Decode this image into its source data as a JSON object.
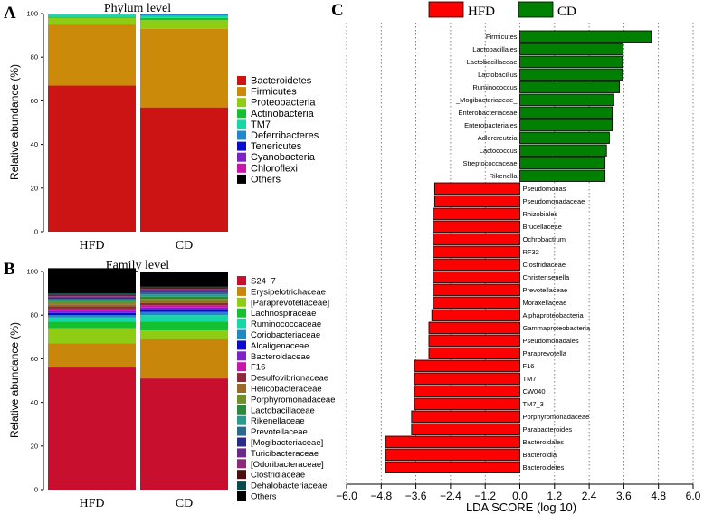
{
  "panel_labels": {
    "a": "A",
    "b": "B",
    "c": "C"
  },
  "chart_data": [
    {
      "type": "bar",
      "subtype": "stacked-100",
      "title": "Phylum level",
      "xlabel": "",
      "ylabel": "Relative abundance (%)",
      "ylim": [
        0,
        100
      ],
      "yticks": [
        0,
        20,
        40,
        60,
        80,
        100
      ],
      "categories": [
        "HFD",
        "CD"
      ],
      "series": [
        {
          "name": "Bacteroidetes",
          "color": "#cc1414",
          "values": [
            67,
            57
          ]
        },
        {
          "name": "Firmicutes",
          "color": "#cc8a0b",
          "values": [
            28,
            36
          ]
        },
        {
          "name": "Proteobacteria",
          "color": "#8fcc14",
          "values": [
            3,
            4
          ]
        },
        {
          "name": "Actinobacteria",
          "color": "#14c030",
          "values": [
            0.5,
            1
          ]
        },
        {
          "name": "TM7",
          "color": "#14d8a6",
          "values": [
            1,
            1
          ]
        },
        {
          "name": "Deferribacteres",
          "color": "#1e88c8",
          "values": [
            0.3,
            0.6
          ]
        },
        {
          "name": "Tenericutes",
          "color": "#0a0ad0",
          "values": [
            0.1,
            0.1
          ]
        },
        {
          "name": "Cyanobacteria",
          "color": "#8020c8",
          "values": [
            0.05,
            0.1
          ]
        },
        {
          "name": "Chloroflexi",
          "color": "#cc14a8",
          "values": [
            0.02,
            0.05
          ]
        },
        {
          "name": "Others",
          "color": "#000000",
          "values": [
            0.03,
            0.15
          ]
        }
      ]
    },
    {
      "type": "bar",
      "subtype": "stacked-100",
      "title": "Family level",
      "xlabel": "",
      "ylabel": "Relative abundance (%)",
      "ylim": [
        0,
        100
      ],
      "yticks": [
        0,
        20,
        40,
        60,
        80,
        100
      ],
      "categories": [
        "HFD",
        "CD"
      ],
      "series": [
        {
          "name": "S24−7",
          "color": "#c8102e",
          "values": [
            56,
            51
          ]
        },
        {
          "name": "Erysipelotrichaceae",
          "color": "#c8860b",
          "values": [
            11,
            18
          ]
        },
        {
          "name": "[Paraprevotellaceae]",
          "color": "#8fcc14",
          "values": [
            7,
            4
          ]
        },
        {
          "name": "Lachnospiraceae",
          "color": "#14c030",
          "values": [
            3,
            4
          ]
        },
        {
          "name": "Ruminococcaceae",
          "color": "#14d8a6",
          "values": [
            2,
            3
          ]
        },
        {
          "name": "Coriobacteriaceae",
          "color": "#1e88c8",
          "values": [
            1,
            1.5
          ]
        },
        {
          "name": "Alcaligenaceae",
          "color": "#0a0ad0",
          "values": [
            1,
            1
          ]
        },
        {
          "name": "Bacteroidaceae",
          "color": "#8020c8",
          "values": [
            1,
            1
          ]
        },
        {
          "name": "F16",
          "color": "#cc14a8",
          "values": [
            1,
            1
          ]
        },
        {
          "name": "Desulfovibrionaceae",
          "color": "#8a2a3a",
          "values": [
            1,
            1
          ]
        },
        {
          "name": "Helicobacteraceae",
          "color": "#9a6a2a",
          "values": [
            1,
            1
          ]
        },
        {
          "name": "Porphyromonadaceae",
          "color": "#6f8f2a",
          "values": [
            1,
            1
          ]
        },
        {
          "name": "Lactobacillaceae",
          "color": "#2a8a3a",
          "values": [
            0.5,
            1
          ]
        },
        {
          "name": "Rikenellaceae",
          "color": "#2a9a8a",
          "values": [
            0.5,
            1
          ]
        },
        {
          "name": "Prevotellaceae",
          "color": "#2a6a8a",
          "values": [
            0.5,
            1
          ]
        },
        {
          "name": "[Mogibacteriaceae]",
          "color": "#2a2a8a",
          "values": [
            0.5,
            0.5
          ]
        },
        {
          "name": "Turicibacteraceae",
          "color": "#6a2a8a",
          "values": [
            0.5,
            0.5
          ]
        },
        {
          "name": "[Odoribacteraceae]",
          "color": "#8a2a7a",
          "values": [
            0.5,
            0.5
          ]
        },
        {
          "name": "Clostridiaceae",
          "color": "#4a1010",
          "values": [
            0.5,
            0.5
          ]
        },
        {
          "name": "Dehalobacteriaceae",
          "color": "#0a4a4a",
          "values": [
            0.5,
            0.5
          ]
        },
        {
          "name": "Others",
          "color": "#000000",
          "values": [
            11.5,
            7
          ]
        }
      ]
    },
    {
      "type": "bar",
      "subtype": "horizontal-diverging",
      "title": "",
      "xlabel": "LDA SCORE (log 10)",
      "ylabel": "",
      "xlim": [
        -6.0,
        6.0
      ],
      "xticks": [
        "−6.0",
        "−4.8",
        "−3.6",
        "−2.4",
        "−1.2",
        "0.0",
        "1.2",
        "2.4",
        "3.6",
        "4.8",
        "6.0"
      ],
      "xtick_values": [
        -6.0,
        -4.8,
        -3.6,
        -2.4,
        -1.2,
        0.0,
        1.2,
        2.4,
        3.6,
        4.8,
        6.0
      ],
      "grid": "vertical dotted",
      "legend": [
        {
          "name": "HFD",
          "color": "#ff0000"
        },
        {
          "name": "CD",
          "color": "#008000"
        }
      ],
      "categories": [
        "Firmicutes",
        "Lactobacillales",
        "Lactobacillaceae",
        "Lactobacillus",
        "Ruminococcus",
        "_Mogibacteriaceae_",
        "Enterobacteriaceae",
        "Enterobacteriales",
        "Adlercreutzia",
        "Lactococcus",
        "Streptococcaceae",
        "Rikenella",
        "Pseudomonas",
        "Pseudomonadaceae",
        "Rhizobiales",
        "Brucellaceae",
        "Ochrobactrum",
        "RF32",
        "Clostridiaceae",
        "Christensenella",
        "Prevotellaceae",
        "Moraxellaceae",
        "Alphaproteobacteria",
        "Gammaproteobacteria",
        "Pseudomonadales",
        "Paraprevotella",
        "F16",
        "TM7",
        "CW040",
        "TM7_3",
        "Porphyromonadaceae",
        "Parabacteroides",
        "Bacteroidales",
        "Bacteroidia",
        "Bacteroidetes"
      ],
      "values": [
        4.55,
        3.58,
        3.55,
        3.55,
        3.45,
        3.25,
        3.2,
        3.2,
        3.1,
        3.0,
        2.95,
        2.95,
        -2.95,
        -2.95,
        -3.0,
        -3.0,
        -3.0,
        -3.0,
        -3.0,
        -3.0,
        -3.0,
        -3.0,
        -3.05,
        -3.15,
        -3.15,
        -3.15,
        -3.65,
        -3.65,
        -3.65,
        -3.65,
        -3.75,
        -3.75,
        -4.65,
        -4.65,
        -4.65
      ],
      "groups": [
        "CD",
        "CD",
        "CD",
        "CD",
        "CD",
        "CD",
        "CD",
        "CD",
        "CD",
        "CD",
        "CD",
        "CD",
        "HFD",
        "HFD",
        "HFD",
        "HFD",
        "HFD",
        "HFD",
        "HFD",
        "HFD",
        "HFD",
        "HFD",
        "HFD",
        "HFD",
        "HFD",
        "HFD",
        "HFD",
        "HFD",
        "HFD",
        "HFD",
        "HFD",
        "HFD",
        "HFD",
        "HFD",
        "HFD"
      ]
    }
  ]
}
